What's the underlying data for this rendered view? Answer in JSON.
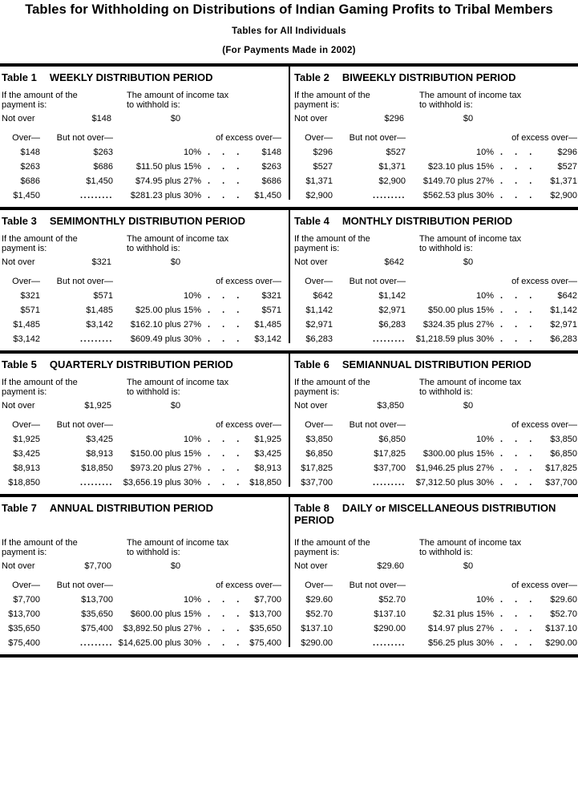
{
  "document": {
    "title": "Tables for Withholding on Distributions of Indian Gaming Profits to Tribal Members",
    "subtitle": "Tables for All Individuals",
    "payment_note": "(For Payments Made in 2002)"
  },
  "labels": {
    "payment_line1": "If the amount of the",
    "payment_line2": "payment is:",
    "withhold_line1": "The amount of income tax",
    "withhold_line2": "to withhold is:",
    "not_over": "Not over",
    "over_header": "Over—",
    "but_not_over_header": "But not over—",
    "excess_header": "of excess over—",
    "dots": ". . .",
    "leader_dots": "........."
  },
  "tables": [
    {
      "id": "Table 1",
      "period": "WEEKLY DISTRIBUTION PERIOD",
      "not_over_amount": "$148",
      "zero_tax": "$0",
      "rows": [
        {
          "over": "$148",
          "but_not_over": "$263",
          "tax": "10%",
          "excess": "$148"
        },
        {
          "over": "$263",
          "but_not_over": "$686",
          "tax": "$11.50 plus 15%",
          "excess": "$263"
        },
        {
          "over": "$686",
          "but_not_over": "$1,450",
          "tax": "$74.95 plus 27%",
          "excess": "$686"
        },
        {
          "over": "$1,450",
          "but_not_over": "",
          "leader": true,
          "tax": "$281.23 plus 30%",
          "excess": "$1,450"
        }
      ]
    },
    {
      "id": "Table 2",
      "period": "BIWEEKLY DISTRIBUTION PERIOD",
      "not_over_amount": "$296",
      "zero_tax": "$0",
      "rows": [
        {
          "over": "$296",
          "but_not_over": "$527",
          "tax": "10%",
          "excess": "$296"
        },
        {
          "over": "$527",
          "but_not_over": "$1,371",
          "tax": "$23.10 plus 15%",
          "excess": "$527"
        },
        {
          "over": "$1,371",
          "but_not_over": "$2,900",
          "tax": "$149.70 plus 27%",
          "excess": "$1,371"
        },
        {
          "over": "$2,900",
          "but_not_over": "",
          "leader": true,
          "tax": "$562.53 plus 30%",
          "excess": "$2,900"
        }
      ]
    },
    {
      "id": "Table 3",
      "period": "SEMIMONTHLY DISTRIBUTION PERIOD",
      "not_over_amount": "$321",
      "zero_tax": "$0",
      "rows": [
        {
          "over": "$321",
          "but_not_over": "$571",
          "tax": "10%",
          "excess": "$321"
        },
        {
          "over": "$571",
          "but_not_over": "$1,485",
          "tax": "$25.00 plus 15%",
          "excess": "$571"
        },
        {
          "over": "$1,485",
          "but_not_over": "$3,142",
          "tax": "$162.10 plus 27%",
          "excess": "$1,485"
        },
        {
          "over": "$3,142",
          "but_not_over": "",
          "leader": true,
          "tax": "$609.49 plus 30%",
          "excess": "$3,142"
        }
      ]
    },
    {
      "id": "Table 4",
      "period": "MONTHLY DISTRIBUTION PERIOD",
      "not_over_amount": "$642",
      "zero_tax": "$0",
      "rows": [
        {
          "over": "$642",
          "but_not_over": "$1,142",
          "tax": "10%",
          "excess": "$642"
        },
        {
          "over": "$1,142",
          "but_not_over": "$2,971",
          "tax": "$50.00 plus 15%",
          "excess": "$1,142"
        },
        {
          "over": "$2,971",
          "but_not_over": "$6,283",
          "tax": "$324.35 plus 27%",
          "excess": "$2,971"
        },
        {
          "over": "$6,283",
          "but_not_over": "",
          "leader": true,
          "tax": "$1,218.59 plus 30%",
          "excess": "$6,283"
        }
      ]
    },
    {
      "id": "Table 5",
      "period": "QUARTERLY DISTRIBUTION PERIOD",
      "not_over_amount": "$1,925",
      "zero_tax": "$0",
      "rows": [
        {
          "over": "$1,925",
          "but_not_over": "$3,425",
          "tax": "10%",
          "excess": "$1,925"
        },
        {
          "over": "$3,425",
          "but_not_over": "$8,913",
          "tax": "$150.00 plus 15%",
          "excess": "$3,425"
        },
        {
          "over": "$8,913",
          "but_not_over": "$18,850",
          "tax": "$973.20 plus 27%",
          "excess": "$8,913"
        },
        {
          "over": "$18,850",
          "but_not_over": "",
          "leader": true,
          "tax": "$3,656.19 plus 30%",
          "excess": "$18,850"
        }
      ]
    },
    {
      "id": "Table 6",
      "period": "SEMIANNUAL DISTRIBUTION PERIOD",
      "not_over_amount": "$3,850",
      "zero_tax": "$0",
      "rows": [
        {
          "over": "$3,850",
          "but_not_over": "$6,850",
          "tax": "10%",
          "excess": "$3,850"
        },
        {
          "over": "$6,850",
          "but_not_over": "$17,825",
          "tax": "$300.00 plus 15%",
          "excess": "$6,850"
        },
        {
          "over": "$17,825",
          "but_not_over": "$37,700",
          "tax": "$1,946.25 plus 27%",
          "excess": "$17,825"
        },
        {
          "over": "$37,700",
          "but_not_over": "",
          "leader": true,
          "tax": "$7,312.50 plus 30%",
          "excess": "$37,700"
        }
      ]
    },
    {
      "id": "Table 7",
      "period": "ANNUAL DISTRIBUTION PERIOD",
      "not_over_amount": "$7,700",
      "zero_tax": "$0",
      "rows": [
        {
          "over": "$7,700",
          "but_not_over": "$13,700",
          "tax": "10%",
          "excess": "$7,700"
        },
        {
          "over": "$13,700",
          "but_not_over": "$35,650",
          "tax": "$600.00 plus 15%",
          "excess": "$13,700"
        },
        {
          "over": "$35,650",
          "but_not_over": "$75,400",
          "tax": "$3,892.50 plus 27%",
          "excess": "$35,650"
        },
        {
          "over": "$75,400",
          "but_not_over": "",
          "leader": true,
          "tax": "$14,625.00 plus 30%",
          "excess": "$75,400"
        }
      ]
    },
    {
      "id": "Table 8",
      "period": "DAILY or MISCELLANEOUS DISTRIBUTION PERIOD",
      "not_over_amount": "$29.60",
      "zero_tax": "$0",
      "rows": [
        {
          "over": "$29.60",
          "but_not_over": "$52.70",
          "tax": "10%",
          "excess": "$29.60"
        },
        {
          "over": "$52.70",
          "but_not_over": "$137.10",
          "tax": "$2.31 plus 15%",
          "excess": "$52.70"
        },
        {
          "over": "$137.10",
          "but_not_over": "$290.00",
          "tax": "$14.97 plus 27%",
          "excess": "$137.10"
        },
        {
          "over": "$290.00",
          "but_not_over": "",
          "leader": true,
          "tax": "$56.25 plus 30%",
          "excess": "$290.00"
        }
      ]
    }
  ]
}
